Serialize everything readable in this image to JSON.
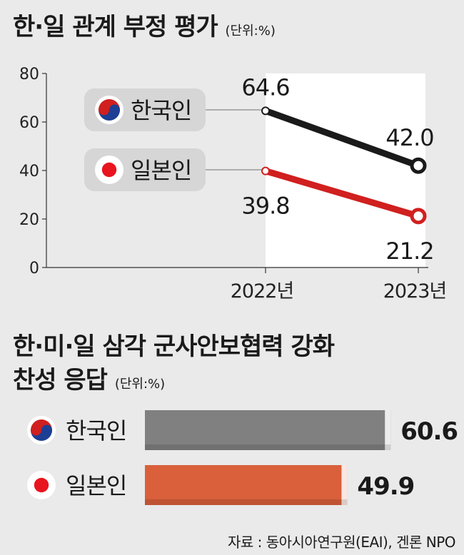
{
  "chart_data": [
    {
      "type": "line",
      "title": "한·일 관계 부정 평가",
      "unit": "(단위:%)",
      "x": [
        "2022년",
        "2023년"
      ],
      "ylim": [
        0,
        80
      ],
      "yticks": [
        0,
        20,
        40,
        60,
        80
      ],
      "series": [
        {
          "name": "한국인",
          "values": [
            64.6,
            42.0
          ],
          "labels": [
            "64.6",
            "42.0"
          ],
          "color": "#1a1a1a",
          "flag": "korea-flag-icon"
        },
        {
          "name": "일본인",
          "values": [
            39.8,
            21.2
          ],
          "labels": [
            "39.8",
            "21.2"
          ],
          "color": "#d0201f",
          "flag": "japan-flag-icon"
        }
      ],
      "grid": false
    },
    {
      "type": "bar",
      "title_line1": "한·미·일 삼각 군사안보협력 강화",
      "title_line2": "찬성 응답",
      "unit": "(단위:%)",
      "categories": [
        "한국인",
        "일본인"
      ],
      "values": [
        60.6,
        49.9
      ],
      "labels": [
        "60.6",
        "49.9"
      ],
      "colors": [
        "#808080",
        "#d9603b"
      ],
      "flags": [
        "korea-flag-icon",
        "japan-flag-icon"
      ]
    }
  ],
  "source": "자료 : 동아시아연구원(EAI), 겐론 NPO"
}
